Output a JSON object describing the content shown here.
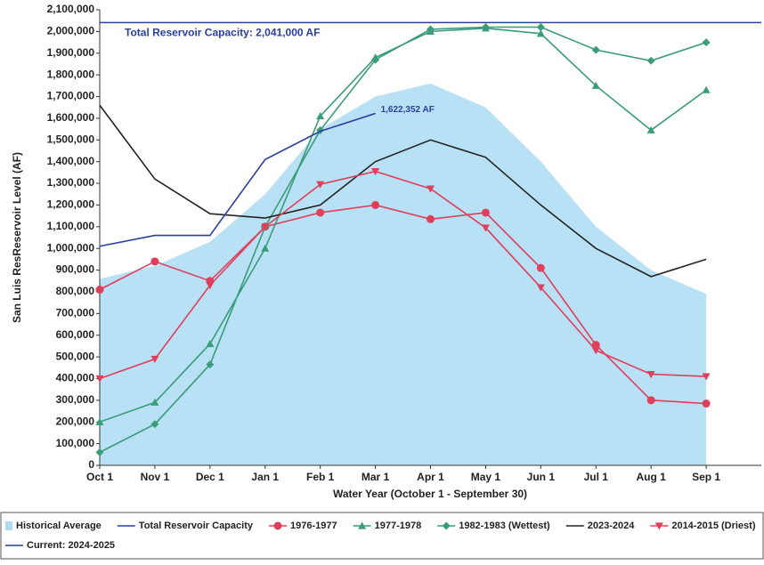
{
  "chart_data": {
    "type": "line",
    "y_label": "San Luis ResReservoir Level (AF)",
    "x_label": "Water Year (October 1 - September 30)",
    "categories": [
      "Oct 1",
      "Nov 1",
      "Dec 1",
      "Jan 1",
      "Feb 1",
      "Mar 1",
      "Apr 1",
      "May 1",
      "Jun 1",
      "Jul 1",
      "Aug 1",
      "Sep 1"
    ],
    "ylim": [
      0,
      2100000
    ],
    "yticks": [
      0,
      {
        "value": 100000,
        "label": "100,000"
      },
      {
        "value": 200000,
        "label": "200,000"
      },
      {
        "value": 300000,
        "label": "300,000"
      },
      {
        "value": 400000,
        "label": "400,000"
      },
      {
        "value": 500000,
        "label": "500,000"
      },
      {
        "value": 600000,
        "label": "600,000"
      },
      {
        "value": 700000,
        "label": "700,000"
      },
      {
        "value": 800000,
        "label": "800,000"
      },
      {
        "value": 900000,
        "label": "900,000"
      },
      {
        "value": 1000000,
        "label": "1,000,000"
      },
      {
        "value": 1100000,
        "label": "1,100,000"
      },
      {
        "value": 1200000,
        "label": "1,200,000"
      },
      {
        "value": 1300000,
        "label": "1,300,000"
      },
      {
        "value": 1400000,
        "label": "1,400,000"
      },
      {
        "value": 1500000,
        "label": "1,500,000"
      },
      {
        "value": 1600000,
        "label": "1,600,000"
      },
      {
        "value": 1700000,
        "label": "1,700,000"
      },
      {
        "value": 1800000,
        "label": "1,800,000"
      },
      {
        "value": 1900000,
        "label": "1,900,000"
      },
      {
        "value": 2000000,
        "label": "2,000,000"
      },
      {
        "value": 2100000,
        "label": "2,100,000"
      }
    ],
    "capacity": {
      "name": "Total Reservoir Capacity",
      "value": 2041000,
      "label": "Total Reservoir Capacity: 2,041,000 AF",
      "color": "#2b3f9c"
    },
    "series": [
      {
        "name": "Historical Average",
        "kind": "area",
        "color": "#acdcf3",
        "values": [
          860000,
          920000,
          1030000,
          1250000,
          1550000,
          1700000,
          1760000,
          1650000,
          1400000,
          1100000,
          900000,
          790000
        ]
      },
      {
        "name": "1976-1977",
        "kind": "line",
        "marker": "circle",
        "color": "#e03f5c",
        "values": [
          810000,
          940000,
          850000,
          1100000,
          1165000,
          1200000,
          1135000,
          1165000,
          910000,
          555000,
          300000,
          285000
        ]
      },
      {
        "name": "1977-1978",
        "kind": "line",
        "marker": "triangle-up",
        "color": "#3a9c78",
        "values": [
          200000,
          290000,
          560000,
          1000000,
          1610000,
          1880000,
          2000000,
          2015000,
          1990000,
          1750000,
          1545000,
          1730000
        ]
      },
      {
        "name": "1982-1983 (Wettest)",
        "kind": "line",
        "marker": "diamond",
        "color": "#3a9c78",
        "values": [
          60000,
          190000,
          465000,
          1100000,
          1545000,
          1870000,
          2010000,
          2020000,
          2020000,
          1915000,
          1865000,
          1950000
        ]
      },
      {
        "name": "2023-2024",
        "kind": "line",
        "marker": "none",
        "color": "#222222",
        "values": [
          1660000,
          1320000,
          1160000,
          1140000,
          1200000,
          1400000,
          1500000,
          1420000,
          1200000,
          1000000,
          870000,
          950000
        ]
      },
      {
        "name": "2014-2015 (Driest)",
        "kind": "line",
        "marker": "triangle-down",
        "color": "#e03f5c",
        "values": [
          400000,
          490000,
          830000,
          1100000,
          1295000,
          1355000,
          1275000,
          1095000,
          820000,
          530000,
          420000,
          410000
        ]
      },
      {
        "name": "Current: 2024-2025",
        "kind": "line",
        "marker": "none",
        "color": "#2b3f9c",
        "values": [
          1010000,
          1060000,
          1060000,
          1410000,
          1540000,
          1622352,
          null,
          null,
          null,
          null,
          null,
          null
        ],
        "value_labels": [
          null,
          null,
          null,
          null,
          null,
          "1,622,352 AF",
          null,
          null,
          null,
          null,
          null,
          null
        ]
      }
    ]
  }
}
